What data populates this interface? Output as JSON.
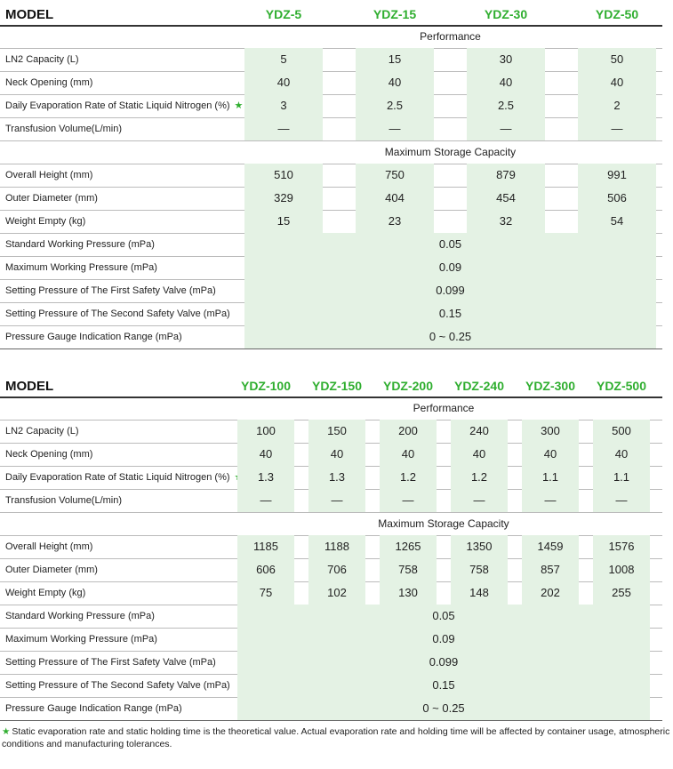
{
  "tables": [
    {
      "header": [
        "MODEL",
        "YDZ-5",
        "YDZ-15",
        "YDZ-30",
        "YDZ-50"
      ],
      "sections": [
        {
          "title": "Performance",
          "rows": [
            {
              "label": "LN2 Capacity (L)",
              "values": [
                "5",
                "15",
                "30",
                "50"
              ]
            },
            {
              "label": "Neck Opening (mm)",
              "values": [
                "40",
                "40",
                "40",
                "40"
              ]
            },
            {
              "label": "Daily Evaporation Rate of Static Liquid Nitrogen (%)",
              "mark": "★",
              "values": [
                "3",
                "2.5",
                "2.5",
                "2"
              ]
            },
            {
              "label": "Transfusion Volume(L/min)",
              "values": [
                "—",
                "—",
                "—",
                "—"
              ]
            }
          ]
        },
        {
          "title": "Maximum Storage Capacity",
          "rows": [
            {
              "label": "Overall Height (mm)",
              "values": [
                "510",
                "750",
                "879",
                "991"
              ]
            },
            {
              "label": "Outer Diameter (mm)",
              "values": [
                "329",
                "404",
                "454",
                "506"
              ]
            },
            {
              "label": "Weight Empty (kg)",
              "values": [
                "15",
                "23",
                "32",
                "54"
              ]
            },
            {
              "label": "Standard Working Pressure (mPa)",
              "shared": "0.05"
            },
            {
              "label": "Maximum Working Pressure (mPa)",
              "shared": "0.09"
            },
            {
              "label": "Setting Pressure of The First Safety Valve (mPa)",
              "shared": "0.099"
            },
            {
              "label": "Setting Pressure of The Second Safety Valve (mPa)",
              "shared": "0.15"
            },
            {
              "label": "Pressure Gauge Indication Range (mPa)",
              "shared": "0 ~ 0.25"
            }
          ]
        }
      ]
    },
    {
      "header": [
        "MODEL",
        "YDZ-100",
        "YDZ-150",
        "YDZ-200",
        "YDZ-240",
        "YDZ-300",
        "YDZ-500"
      ],
      "sections": [
        {
          "title": "Performance",
          "rows": [
            {
              "label": "LN2 Capacity (L)",
              "values": [
                "100",
                "150",
                "200",
                "240",
                "300",
                "500"
              ]
            },
            {
              "label": "Neck Opening (mm)",
              "values": [
                "40",
                "40",
                "40",
                "40",
                "40",
                "40"
              ]
            },
            {
              "label": "Daily Evaporation Rate of Static Liquid Nitrogen (%)",
              "mark": "★",
              "values": [
                "1.3",
                "1.3",
                "1.2",
                "1.2",
                "1.1",
                "1.1"
              ]
            },
            {
              "label": "Transfusion Volume(L/min)",
              "values": [
                "—",
                "—",
                "—",
                "—",
                "—",
                "—"
              ]
            }
          ]
        },
        {
          "title": "Maximum Storage Capacity",
          "rows": [
            {
              "label": "Overall Height (mm)",
              "values": [
                "1185",
                "1188",
                "1265",
                "1350",
                "1459",
                "1576"
              ]
            },
            {
              "label": "Outer Diameter (mm)",
              "values": [
                "606",
                "706",
                "758",
                "758",
                "857",
                "1008"
              ]
            },
            {
              "label": "Weight Empty (kg)",
              "values": [
                "75",
                "102",
                "130",
                "148",
                "202",
                "255"
              ]
            },
            {
              "label": "Standard Working Pressure (mPa)",
              "shared": "0.05"
            },
            {
              "label": "Maximum Working Pressure (mPa)",
              "shared": "0.09"
            },
            {
              "label": "Setting Pressure of The First Safety Valve (mPa)",
              "shared": "0.099"
            },
            {
              "label": "Setting Pressure of The Second Safety Valve (mPa)",
              "shared": "0.15"
            },
            {
              "label": "Pressure Gauge Indication Range (mPa)",
              "shared": "0 ~ 0.25"
            }
          ]
        }
      ]
    }
  ],
  "footnote": {
    "mark": "★",
    "text": "Static evaporation rate and static holding time is the theoretical value. Actual evaporation rate and holding time will be affected by container usage, atmospheric conditions and manufacturing tolerances."
  }
}
